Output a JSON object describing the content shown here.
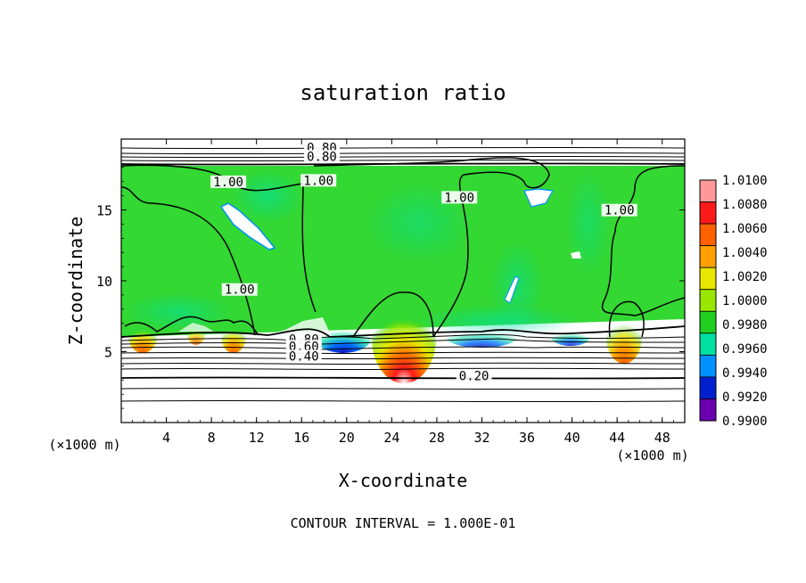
{
  "chart_data": {
    "type": "heatmap",
    "title": "saturation ratio",
    "xlabel": "X-coordinate",
    "ylabel": "Z-coordinate",
    "x_unit": "(×1000 m)",
    "y_unit": "(×1000 m)",
    "xlim": [
      0,
      50
    ],
    "ylim": [
      0,
      20
    ],
    "xticks": [
      "4",
      "8",
      "12",
      "16",
      "20",
      "24",
      "28",
      "32",
      "36",
      "40",
      "44",
      "48"
    ],
    "yticks": [
      "5",
      "10",
      "15"
    ],
    "footer": "CONTOUR INTERVAL = 1.000E-01",
    "colorbar": {
      "levels": [
        "1.0100",
        "1.0080",
        "1.0060",
        "1.0040",
        "1.0020",
        "1.0000",
        "0.9980",
        "0.9960",
        "0.9940",
        "0.9920",
        "0.9900"
      ],
      "colors": [
        "#ff9999",
        "#ff1a1a",
        "#ff6000",
        "#ffa000",
        "#e6e600",
        "#9ae600",
        "#20d020",
        "#00e0a0",
        "#0090ff",
        "#0020d0",
        "#6a00b0"
      ]
    },
    "contour_labels": [
      {
        "text": "0.80",
        "x": 17.8,
        "y": 19.2
      },
      {
        "text": "0.80",
        "x": 17.8,
        "y": 18.6
      },
      {
        "text": "1.00",
        "x": 9.5,
        "y": 16.8
      },
      {
        "text": "1.00",
        "x": 17.5,
        "y": 16.9
      },
      {
        "text": "1.00",
        "x": 30.0,
        "y": 15.7
      },
      {
        "text": "1.00",
        "x": 44.2,
        "y": 14.8
      },
      {
        "text": "1.00",
        "x": 10.5,
        "y": 9.2
      },
      {
        "text": "0.80",
        "x": 16.2,
        "y": 5.7
      },
      {
        "text": "0.60",
        "x": 16.2,
        "y": 5.2
      },
      {
        "text": "0.40",
        "x": 16.2,
        "y": 4.5
      },
      {
        "text": "0.20",
        "x": 31.3,
        "y": 3.1
      }
    ]
  }
}
